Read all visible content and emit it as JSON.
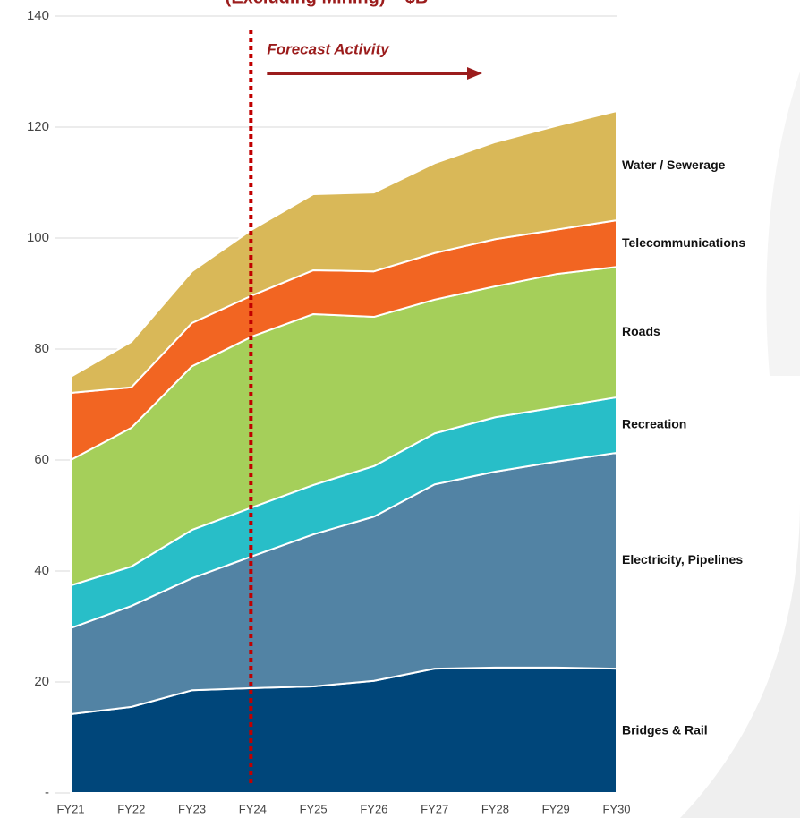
{
  "chart_data": {
    "type": "stacked_area",
    "title": "(Excluding Mining) – $B",
    "annotation": "Forecast Activity",
    "forecast_start": "FY24",
    "categories": [
      "FY21",
      "FY22",
      "FY23",
      "FY24",
      "FY25",
      "FY26",
      "FY27",
      "FY28",
      "FY29",
      "FY30"
    ],
    "series": [
      {
        "name": "Bridges & Rail",
        "color": "#00467a",
        "values": [
          14.2,
          15.5,
          18.5,
          18.9,
          19.2,
          20.2,
          22.4,
          22.6,
          22.6,
          22.4
        ]
      },
      {
        "name": "Electricity, Pipelines",
        "color": "#5283a4",
        "values": [
          15.5,
          18.2,
          20.2,
          23.8,
          27.4,
          29.6,
          33.2,
          35.3,
          37.1,
          38.9
        ]
      },
      {
        "name": "Recreation",
        "color": "#28bec8",
        "values": [
          7.7,
          7.1,
          8.7,
          8.8,
          8.9,
          9.1,
          9.2,
          9.8,
          9.8,
          10.0
        ]
      },
      {
        "name": "Roads",
        "color": "#a5cf5a",
        "values": [
          22.6,
          25.0,
          29.5,
          30.8,
          30.8,
          26.9,
          24.1,
          23.6,
          24.0,
          23.5
        ]
      },
      {
        "name": "Telecommunications",
        "color": "#f26522",
        "values": [
          12.1,
          7.3,
          7.8,
          7.4,
          7.9,
          8.2,
          8.4,
          8.5,
          8.0,
          8.4
        ]
      },
      {
        "name": "Water / Sewerage",
        "color": "#d9b858",
        "values": [
          2.9,
          8.2,
          9.3,
          11.9,
          13.7,
          14.2,
          16.2,
          17.5,
          18.7,
          19.7
        ]
      }
    ],
    "ylim": [
      0,
      140
    ],
    "yticks": [
      {
        "value": 0,
        "label": "-"
      },
      20,
      40,
      60,
      80,
      100,
      120,
      140
    ],
    "grid": true
  }
}
